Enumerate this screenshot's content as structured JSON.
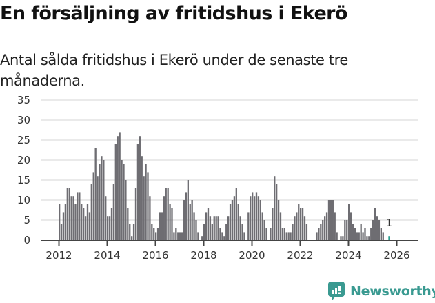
{
  "header": {
    "title": "En försäljning av fritidshus i Ekerö",
    "subtitle": "Antal sålda fritidshus i Ekerö under de senaste tre månaderna."
  },
  "brand": {
    "name": "Newsworthy",
    "color": "#3a9a91"
  },
  "colors": {
    "bar": "#6e6d72",
    "highlight": "#2a9d8f",
    "grid": "#e3e3e3",
    "axis": "#444444"
  },
  "chart_data": {
    "type": "bar",
    "title": "En försäljning av fritidshus i Ekerö",
    "subtitle": "Antal sålda fritidshus i Ekerö under de senaste tre månaderna.",
    "xlabel": "",
    "ylabel": "",
    "ylim": [
      0,
      35
    ],
    "yticks": [
      0,
      5,
      10,
      15,
      20,
      25,
      30,
      35
    ],
    "xticks": [
      "2012",
      "2014",
      "2016",
      "2018",
      "2020",
      "2022",
      "2024",
      "2026"
    ],
    "grid": true,
    "start": "2012-01",
    "frequency": "monthly",
    "annotation": {
      "label": "1",
      "month": "2026-01",
      "value": 1
    },
    "values": [
      9,
      4,
      7,
      9,
      13,
      13,
      11,
      11,
      9,
      12,
      12,
      9,
      8,
      6,
      9,
      7,
      14,
      17,
      23,
      16,
      19,
      21,
      20,
      11,
      6,
      6,
      8,
      14,
      24,
      26,
      27,
      20,
      19,
      15,
      8,
      4,
      1,
      4,
      13,
      24,
      26,
      21,
      16,
      19,
      17,
      11,
      4,
      3,
      2,
      3,
      7,
      7,
      11,
      13,
      13,
      9,
      8,
      2,
      3,
      2,
      2,
      2,
      10,
      12,
      15,
      9,
      10,
      7,
      5,
      2,
      0,
      1,
      4,
      7,
      8,
      6,
      4,
      6,
      6,
      6,
      3,
      2,
      1,
      4,
      6,
      9,
      10,
      11,
      13,
      9,
      6,
      4,
      2,
      0,
      7,
      11,
      12,
      11,
      12,
      11,
      10,
      7,
      5,
      3,
      0,
      3,
      8,
      16,
      14,
      10,
      7,
      3,
      3,
      2,
      2,
      2,
      4,
      6,
      7,
      9,
      8,
      8,
      6,
      4,
      0,
      0,
      0,
      0,
      2,
      3,
      4,
      5,
      6,
      7,
      10,
      10,
      10,
      7,
      2,
      0,
      1,
      1,
      5,
      5,
      9,
      7,
      4,
      3,
      2,
      2,
      4,
      2,
      3,
      1,
      1,
      3,
      5,
      8,
      6,
      5,
      3,
      2,
      0,
      0,
      1
    ]
  }
}
